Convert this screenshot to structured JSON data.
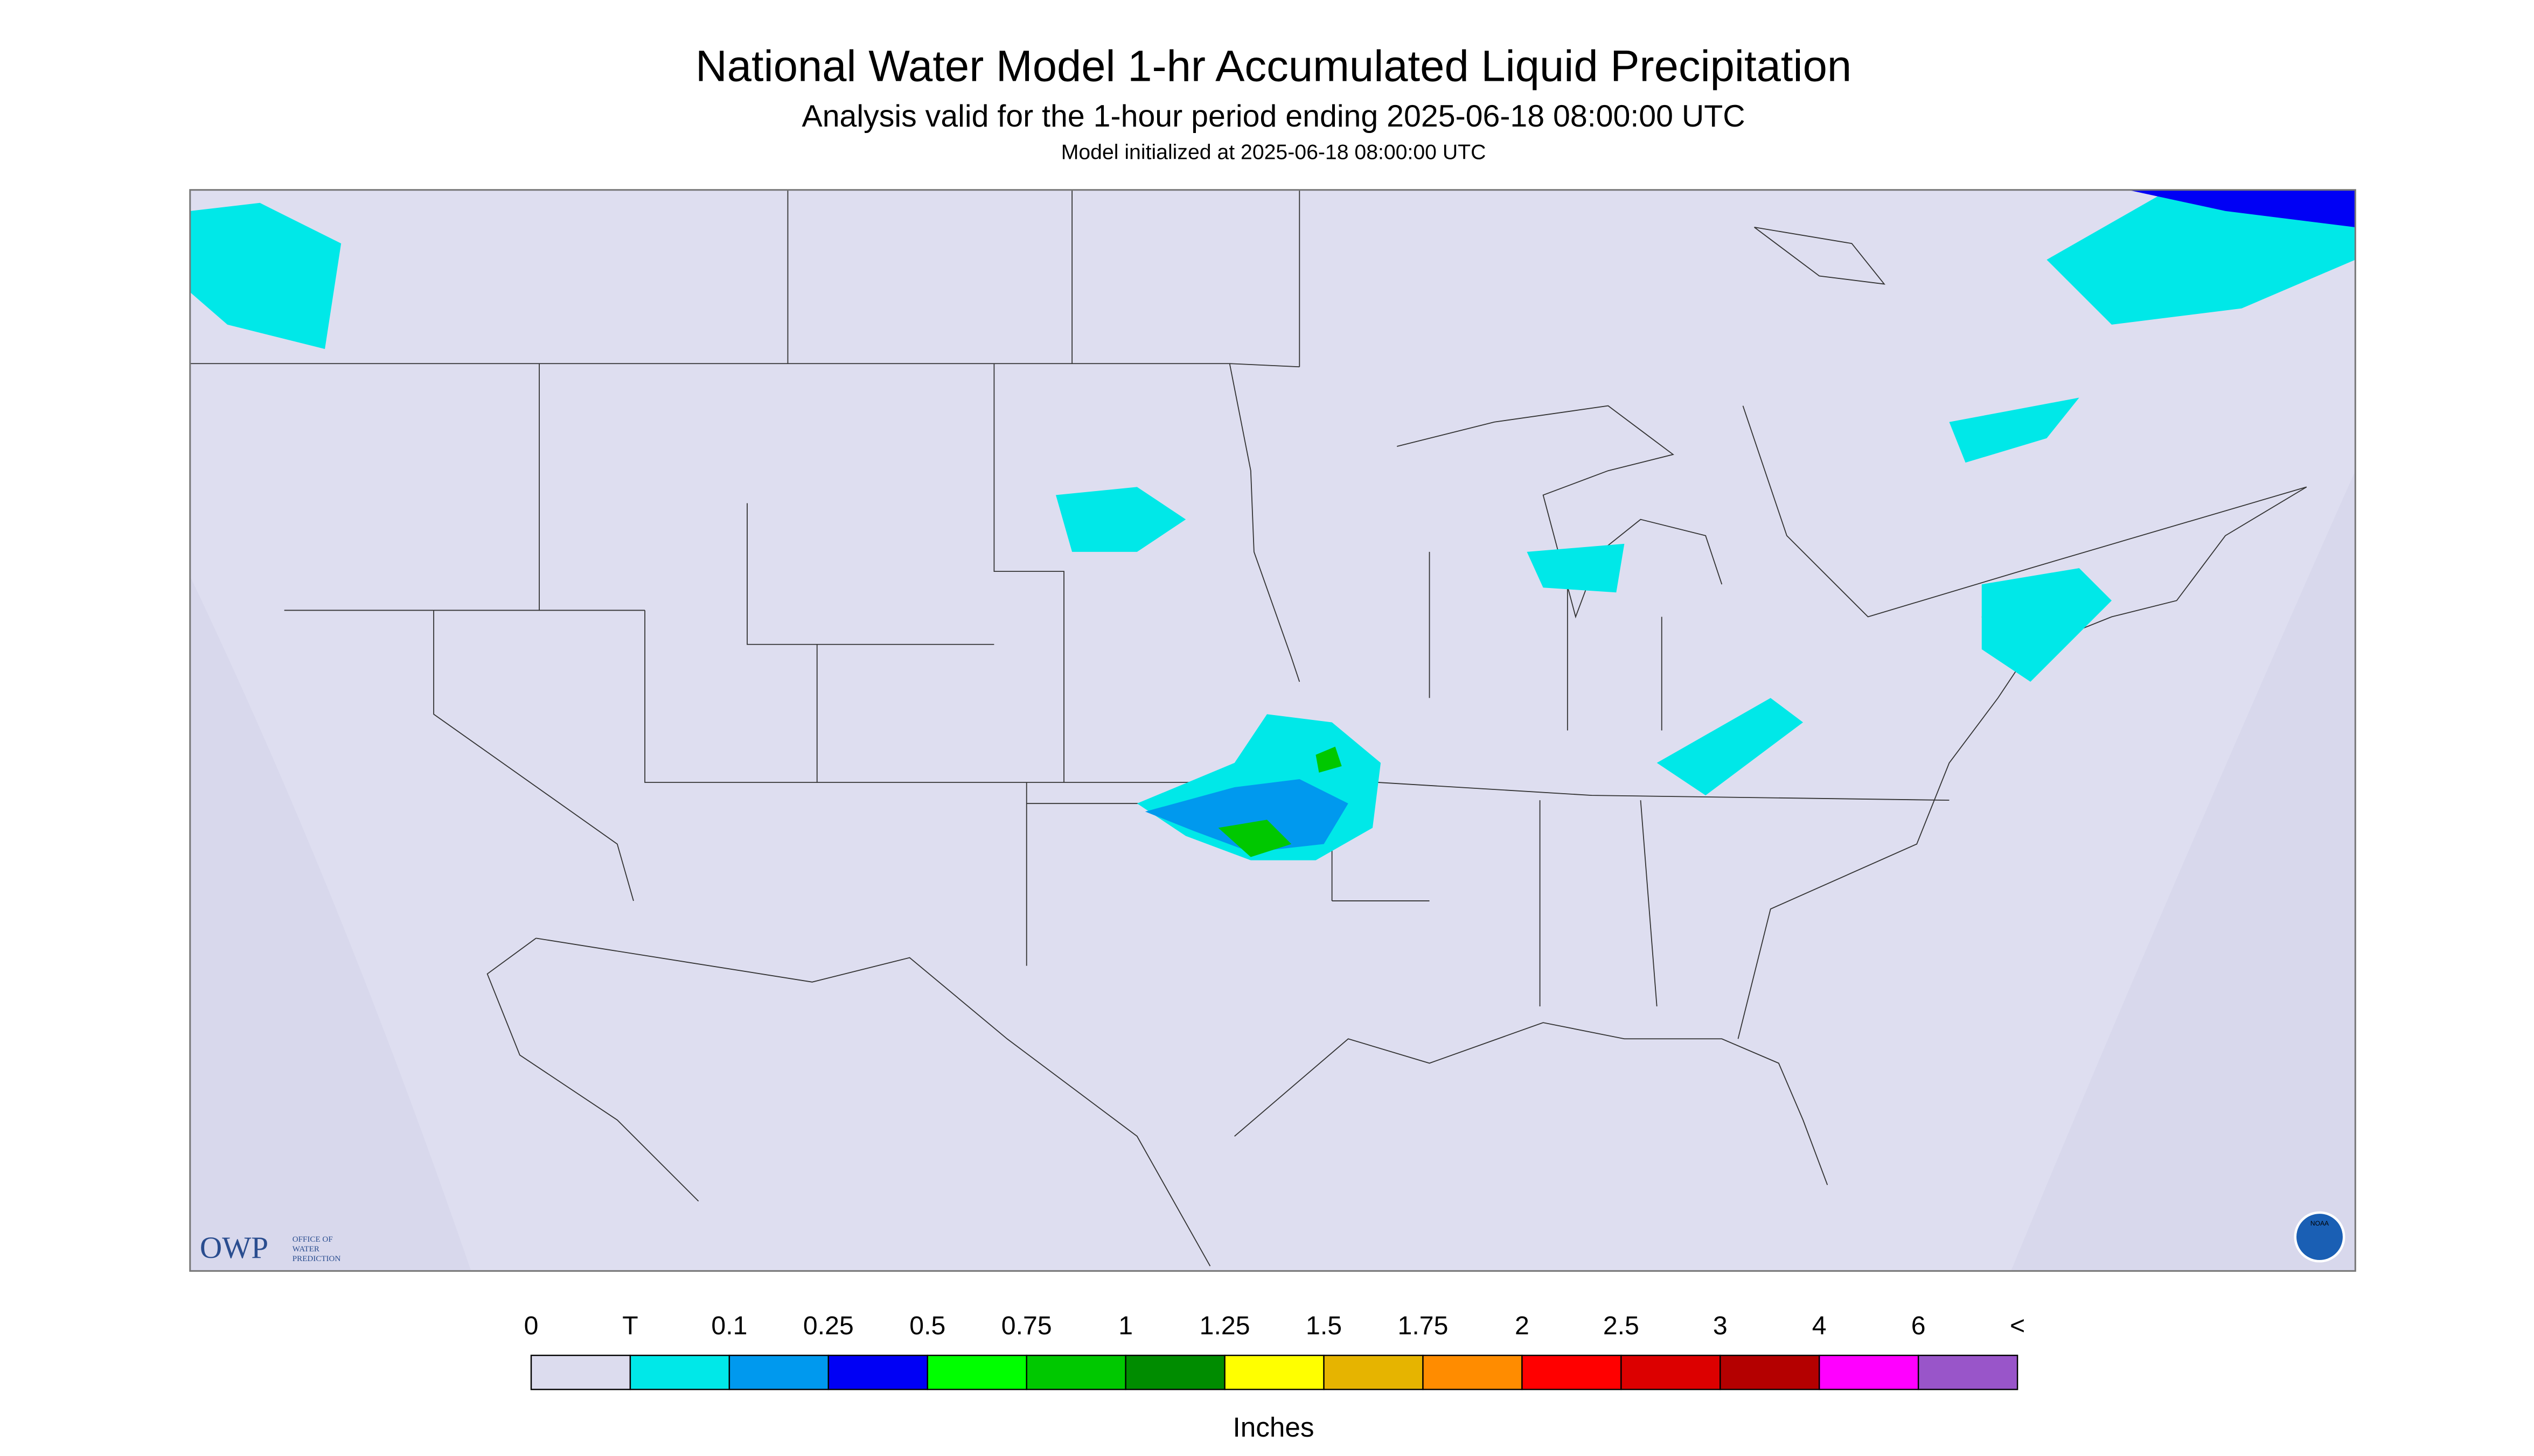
{
  "header": {
    "title": "National Water Model 1-hr Accumulated Liquid Precipitation",
    "subtitle": "Analysis valid for the 1-hour period ending 2025-06-18 08:00:00 UTC",
    "note": "Model initialized at 2025-06-18 08:00:00 UTC"
  },
  "logos": {
    "owp": "OWP",
    "owp_text": [
      "OFFICE OF",
      "WATER",
      "PREDICTION"
    ],
    "noaa": "NOAA"
  },
  "legend": {
    "labels": [
      "0",
      "T",
      "0.1",
      "0.25",
      "0.5",
      "0.75",
      "1",
      "1.25",
      "1.5",
      "1.75",
      "2",
      "2.5",
      "3",
      "4",
      "6",
      "<"
    ],
    "colors": [
      "#dcdcee",
      "#00e8e8",
      "#0099ee",
      "#0000f5",
      "#00ff00",
      "#00c800",
      "#008c00",
      "#ffff00",
      "#e6b400",
      "#ff8c00",
      "#ff0000",
      "#dc0000",
      "#b40000",
      "#ff00ff",
      "#9955c9"
    ],
    "unit": "Inches"
  }
}
